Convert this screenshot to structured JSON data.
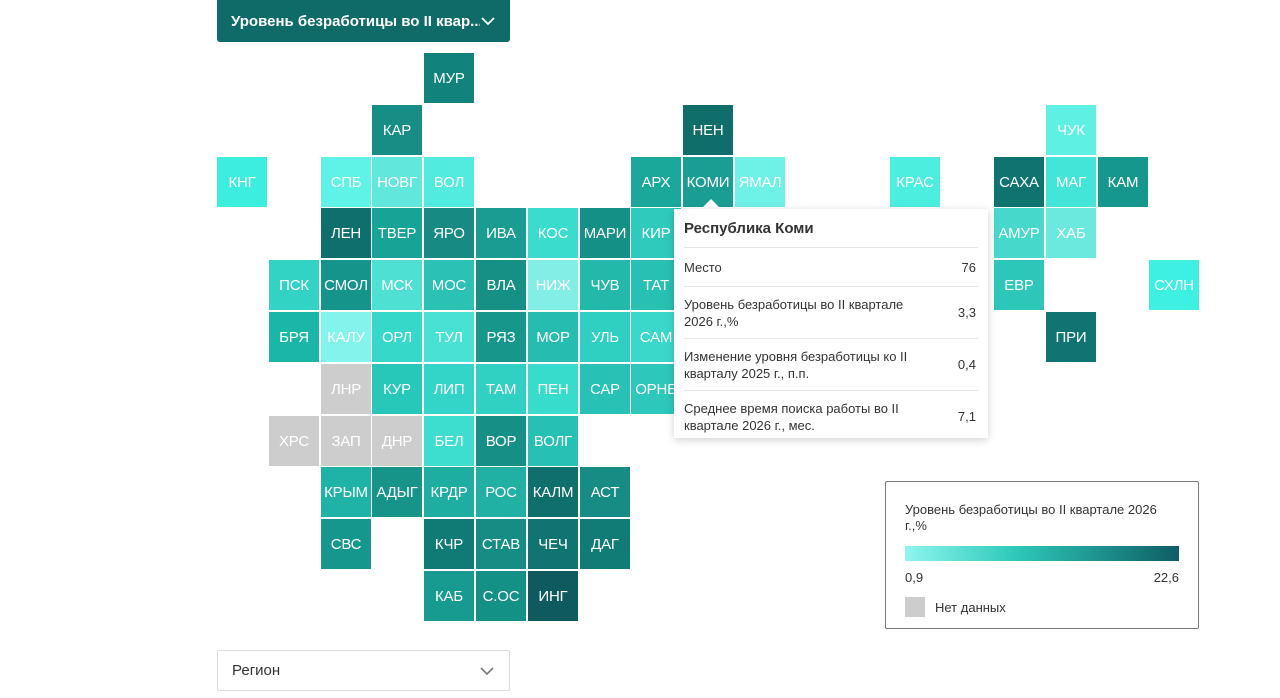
{
  "metric_dropdown": {
    "label": "Уровень безработицы во II квар..."
  },
  "region_dropdown": {
    "placeholder": "Регион"
  },
  "tooltip": {
    "title": "Республика Коми",
    "rows": [
      {
        "label": "Место",
        "value": "76"
      },
      {
        "label": "Уровень безработицы во II квартале 2026 г.,%",
        "value": "3,3"
      },
      {
        "label": "Изменение уровня безработицы ко II кварталу 2025 г., п.п.",
        "value": "0,4"
      },
      {
        "label": "Среднее время поиска работы во II квартале 2026 г., мес.",
        "value": "7,1"
      }
    ]
  },
  "legend": {
    "title": "Уровень безработицы во II квартале 2026 г.,%",
    "min": "0,9",
    "max": "22,6",
    "no_data_label": "Нет данных",
    "no_data_color": "#cdcdcd"
  },
  "colors": {
    "scale_low": "#8ef5ee",
    "scale_mid": "#2ec9bb",
    "scale_high": "#0e5e64",
    "accent": "#0f6b68"
  },
  "tiles": [
    {
      "code": "МУР",
      "color": "#12837c"
    },
    {
      "code": "КАР",
      "color": "#168e85"
    },
    {
      "code": "НЕН",
      "color": "#0f6e6a"
    },
    {
      "code": "ЧУК",
      "color": "#5ef0e3"
    },
    {
      "code": "КНГ",
      "color": "#3ceedd"
    },
    {
      "code": "СПБ",
      "color": "#5ff2e6"
    },
    {
      "code": "НОВГ",
      "color": "#62e7dd"
    },
    {
      "code": "ВОЛ",
      "color": "#52ebe0"
    },
    {
      "code": "АРХ",
      "color": "#19a89a"
    },
    {
      "code": "КОМИ",
      "color": "#1a9e94",
      "selected": true
    },
    {
      "code": "ЯМАЛ",
      "color": "#6ef1e7"
    },
    {
      "code": "КРАС",
      "color": "#4ceee0"
    },
    {
      "code": "САХА",
      "color": "#0f7470"
    },
    {
      "code": "МАГ",
      "color": "#42e5d7"
    },
    {
      "code": "КАМ",
      "color": "#16978e"
    },
    {
      "code": "ЛЕН",
      "color": "#0f6f6c"
    },
    {
      "code": "ТВЕР",
      "color": "#18a397"
    },
    {
      "code": "ЯРО",
      "color": "#168a83"
    },
    {
      "code": "ИВА",
      "color": "#1a9c92"
    },
    {
      "code": "КОС",
      "color": "#39dccd"
    },
    {
      "code": "МАРИ",
      "color": "#159087"
    },
    {
      "code": "КИР",
      "color": "#2ecabb"
    },
    {
      "code": "АМУР",
      "color": "#45d8cb"
    },
    {
      "code": "ХАБ",
      "color": "#6ce9df"
    },
    {
      "code": "ПСК",
      "color": "#32d2c4"
    },
    {
      "code": "СМОЛ",
      "color": "#15948b"
    },
    {
      "code": "МСК",
      "color": "#4fe0d4"
    },
    {
      "code": "МОС",
      "color": "#2bc1b4"
    },
    {
      "code": "ВЛА",
      "color": "#169085"
    },
    {
      "code": "НИЖ",
      "color": "#82eee6"
    },
    {
      "code": "ЧУВ",
      "color": "#22b8aa"
    },
    {
      "code": "ТАТ",
      "color": "#28c0b2"
    },
    {
      "code": "ЕВР",
      "color": "#2dc7ba"
    },
    {
      "code": "СХЛН",
      "color": "#3df0e2"
    },
    {
      "code": "БРЯ",
      "color": "#1ab7a8"
    },
    {
      "code": "КАЛУ",
      "color": "#84f3ec"
    },
    {
      "code": "ОРЛ",
      "color": "#36d8ca"
    },
    {
      "code": "ТУЛ",
      "color": "#4ae1d5"
    },
    {
      "code": "РЯЗ",
      "color": "#17968c"
    },
    {
      "code": "МОР",
      "color": "#26bcb0"
    },
    {
      "code": "УЛЬ",
      "color": "#2fcfc2"
    },
    {
      "code": "САМ",
      "color": "#3ad8ca"
    },
    {
      "code": "ПРИ",
      "color": "#0f7472"
    },
    {
      "code": "ЛНР",
      "color": "#cdcdcd"
    },
    {
      "code": "КУР",
      "color": "#27c7b9"
    },
    {
      "code": "ЛИП",
      "color": "#32d5c7"
    },
    {
      "code": "ТАМ",
      "color": "#30d0c3"
    },
    {
      "code": "ПЕН",
      "color": "#38dccd"
    },
    {
      "code": "САР",
      "color": "#27c2b5"
    },
    {
      "code": "ОРНБ",
      "color": "#2dc8bb"
    },
    {
      "code": "ХРС",
      "color": "#cdcdcd"
    },
    {
      "code": "ЗАП",
      "color": "#cdcdcd"
    },
    {
      "code": "ДНР",
      "color": "#cdcdcd"
    },
    {
      "code": "БЕЛ",
      "color": "#3dddcf"
    },
    {
      "code": "ВОР",
      "color": "#169087"
    },
    {
      "code": "ВОЛГ",
      "color": "#26c1b4"
    },
    {
      "code": "КРЫМ",
      "color": "#1eb3a6"
    },
    {
      "code": "АДЫГ",
      "color": "#169489"
    },
    {
      "code": "КРДР",
      "color": "#1eada1"
    },
    {
      "code": "РОС",
      "color": "#21b1a4"
    },
    {
      "code": "КАЛМ",
      "color": "#0f6f6c"
    },
    {
      "code": "АСТ",
      "color": "#168c84"
    },
    {
      "code": "СВС",
      "color": "#16978d"
    },
    {
      "code": "КЧР",
      "color": "#107a75"
    },
    {
      "code": "СТАВ",
      "color": "#158c84"
    },
    {
      "code": "ЧЕЧ",
      "color": "#107572"
    },
    {
      "code": "ДАГ",
      "color": "#117c76"
    },
    {
      "code": "КАБ",
      "color": "#179a8f"
    },
    {
      "code": "С.ОС",
      "color": "#149187"
    },
    {
      "code": "ИНГ",
      "color": "#0e5a5f"
    }
  ]
}
